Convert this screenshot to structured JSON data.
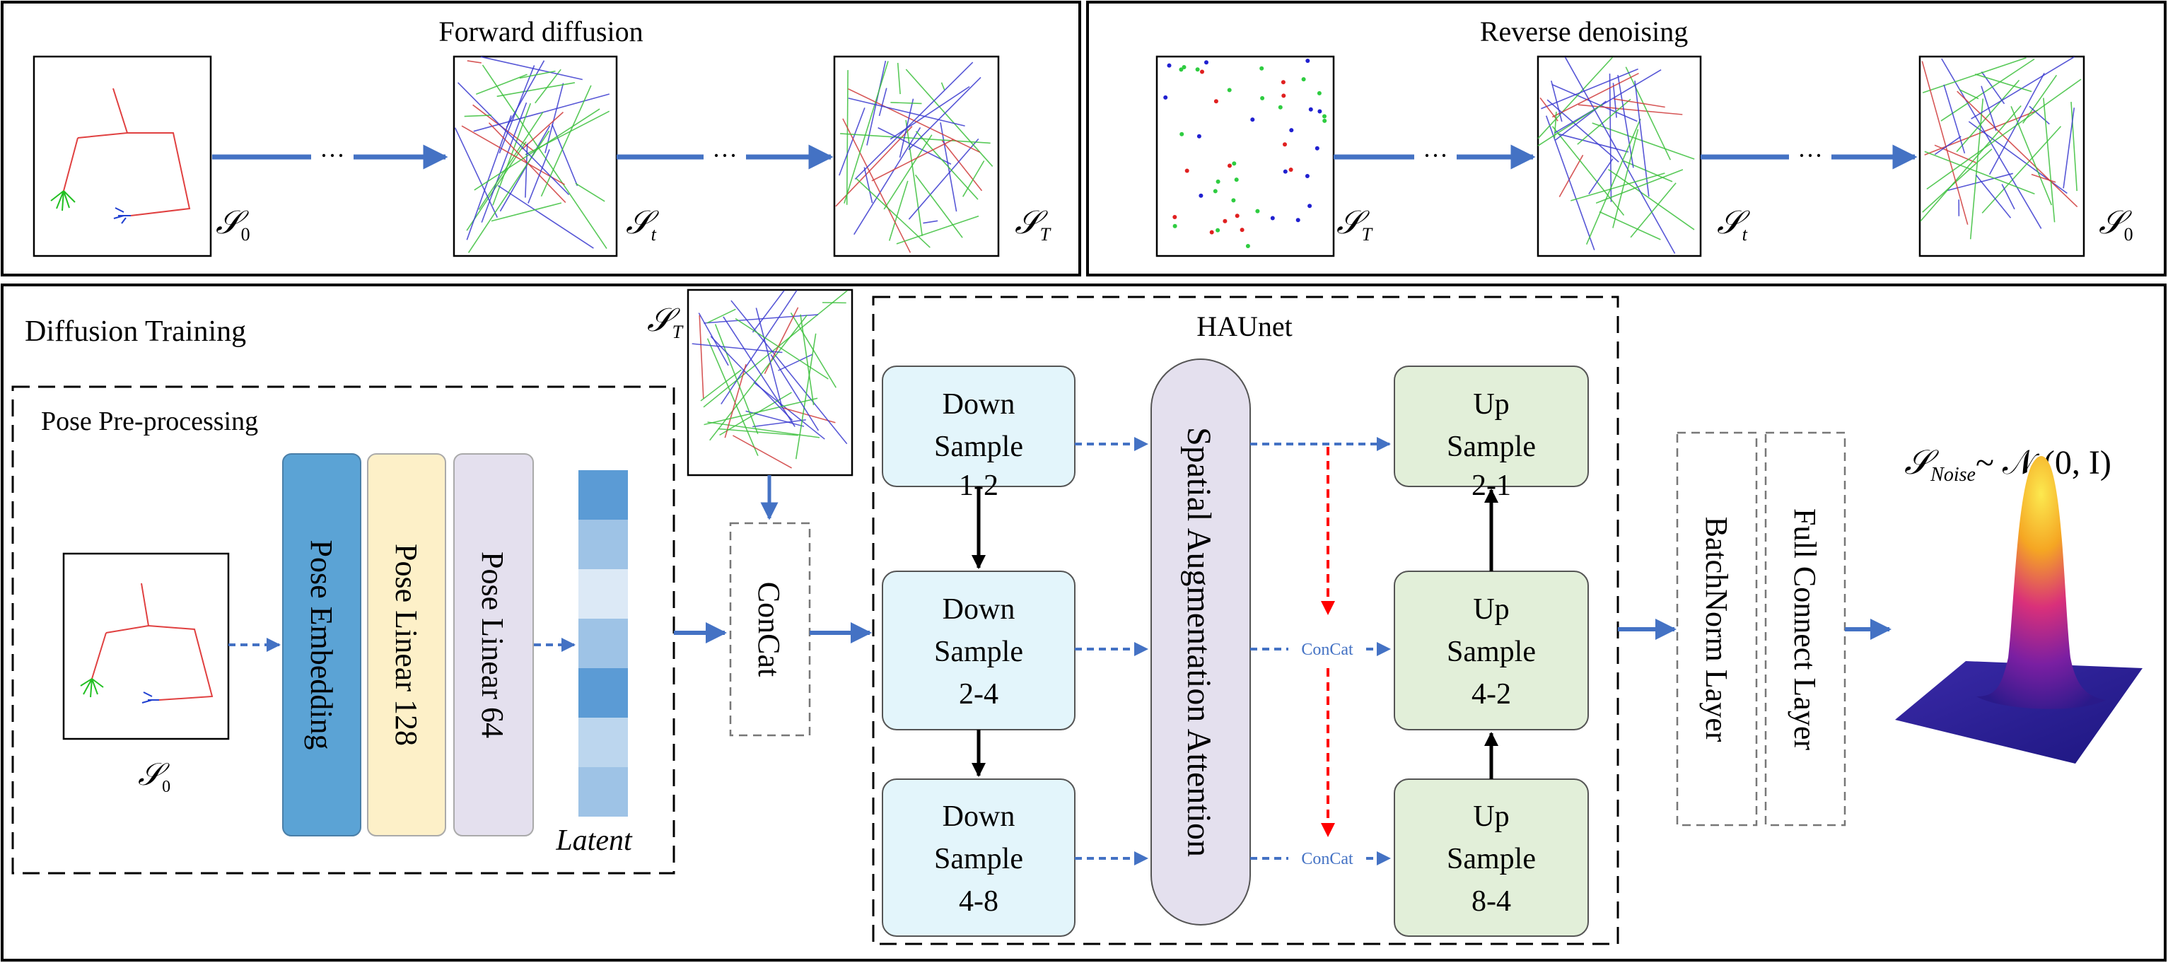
{
  "top": {
    "forward_title": "Forward diffusion",
    "reverse_title": "Reverse denoising",
    "dots": "···",
    "sym_S": "𝒮",
    "sub_0": "0",
    "sub_t": "t",
    "sub_T": "T"
  },
  "training": {
    "title": "Diffusion Training",
    "preproc_title": "Pose Pre-processing",
    "pose_embedding": "Pose Embedding",
    "pose_linear_128": "Pose Linear 128",
    "pose_linear_64": "Pose Linear 64",
    "latent": "Latent",
    "concat": "ConCat",
    "haunet_title": "HAUnet",
    "down_1": [
      "Down",
      "Sample",
      "1-2"
    ],
    "down_2": [
      "Down",
      "Sample",
      "2-4"
    ],
    "down_3": [
      "Down",
      "Sample",
      "4-8"
    ],
    "up_1": [
      "Up",
      "Sample",
      "2-1"
    ],
    "up_2": [
      "Up",
      "Sample",
      "4-2"
    ],
    "up_3": [
      "Up",
      "Sample",
      "8-4"
    ],
    "attention": "Spatial Augmentation Attention",
    "concat_small": "ConCat",
    "batchnorm": "BatchNorm Layer",
    "full_connect": "Full Connect Layer",
    "noise_sub": "Noise",
    "noise_dist": "~ 𝒩 (0, I)"
  },
  "colors": {
    "arrow_blue": "#4472c4",
    "embed_blue": "#5ba3d5",
    "linear128": "#fdf0c8",
    "linear64": "#e4e0ee",
    "down_fill": "#e3f5fb",
    "up_fill": "#e2efd9",
    "attention_fill": "#e4e0ee",
    "red_dash": "#ff0000"
  }
}
